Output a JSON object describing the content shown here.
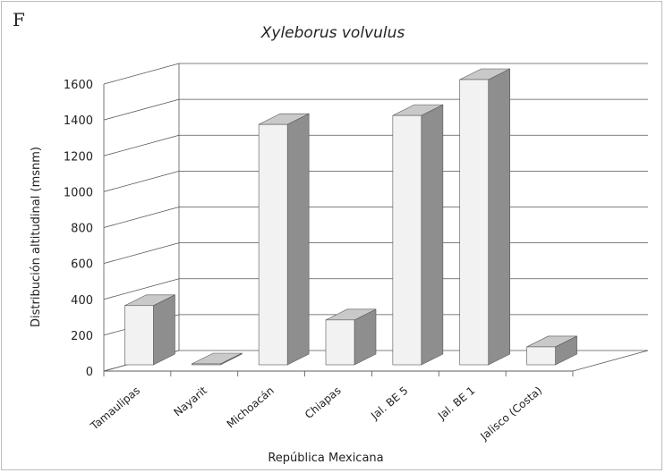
{
  "panel_label": "F",
  "chart_data": {
    "type": "bar",
    "title": "Xyleborus volvulus",
    "xlabel": "República Mexicana",
    "ylabel": "Distribución altitudinal (msnm)",
    "categories": [
      "Tamaulipas",
      "Nayarit",
      "Michoacán",
      "Chiapas",
      "Jal. BE 5",
      "Jal. BE 1",
      "Jalisco (Costa)"
    ],
    "values": [
      330,
      5,
      1340,
      250,
      1390,
      1590,
      100
    ],
    "yticks": [
      0,
      200,
      400,
      600,
      800,
      1000,
      1200,
      1400,
      1600
    ],
    "ylim": [
      0,
      1600
    ],
    "grid": true,
    "style": "3d",
    "colors": {
      "bar_front": "#f2f2f2",
      "bar_side": "#8e8e8e",
      "bar_top": "#c9c9c9",
      "grid": "#555555"
    }
  }
}
